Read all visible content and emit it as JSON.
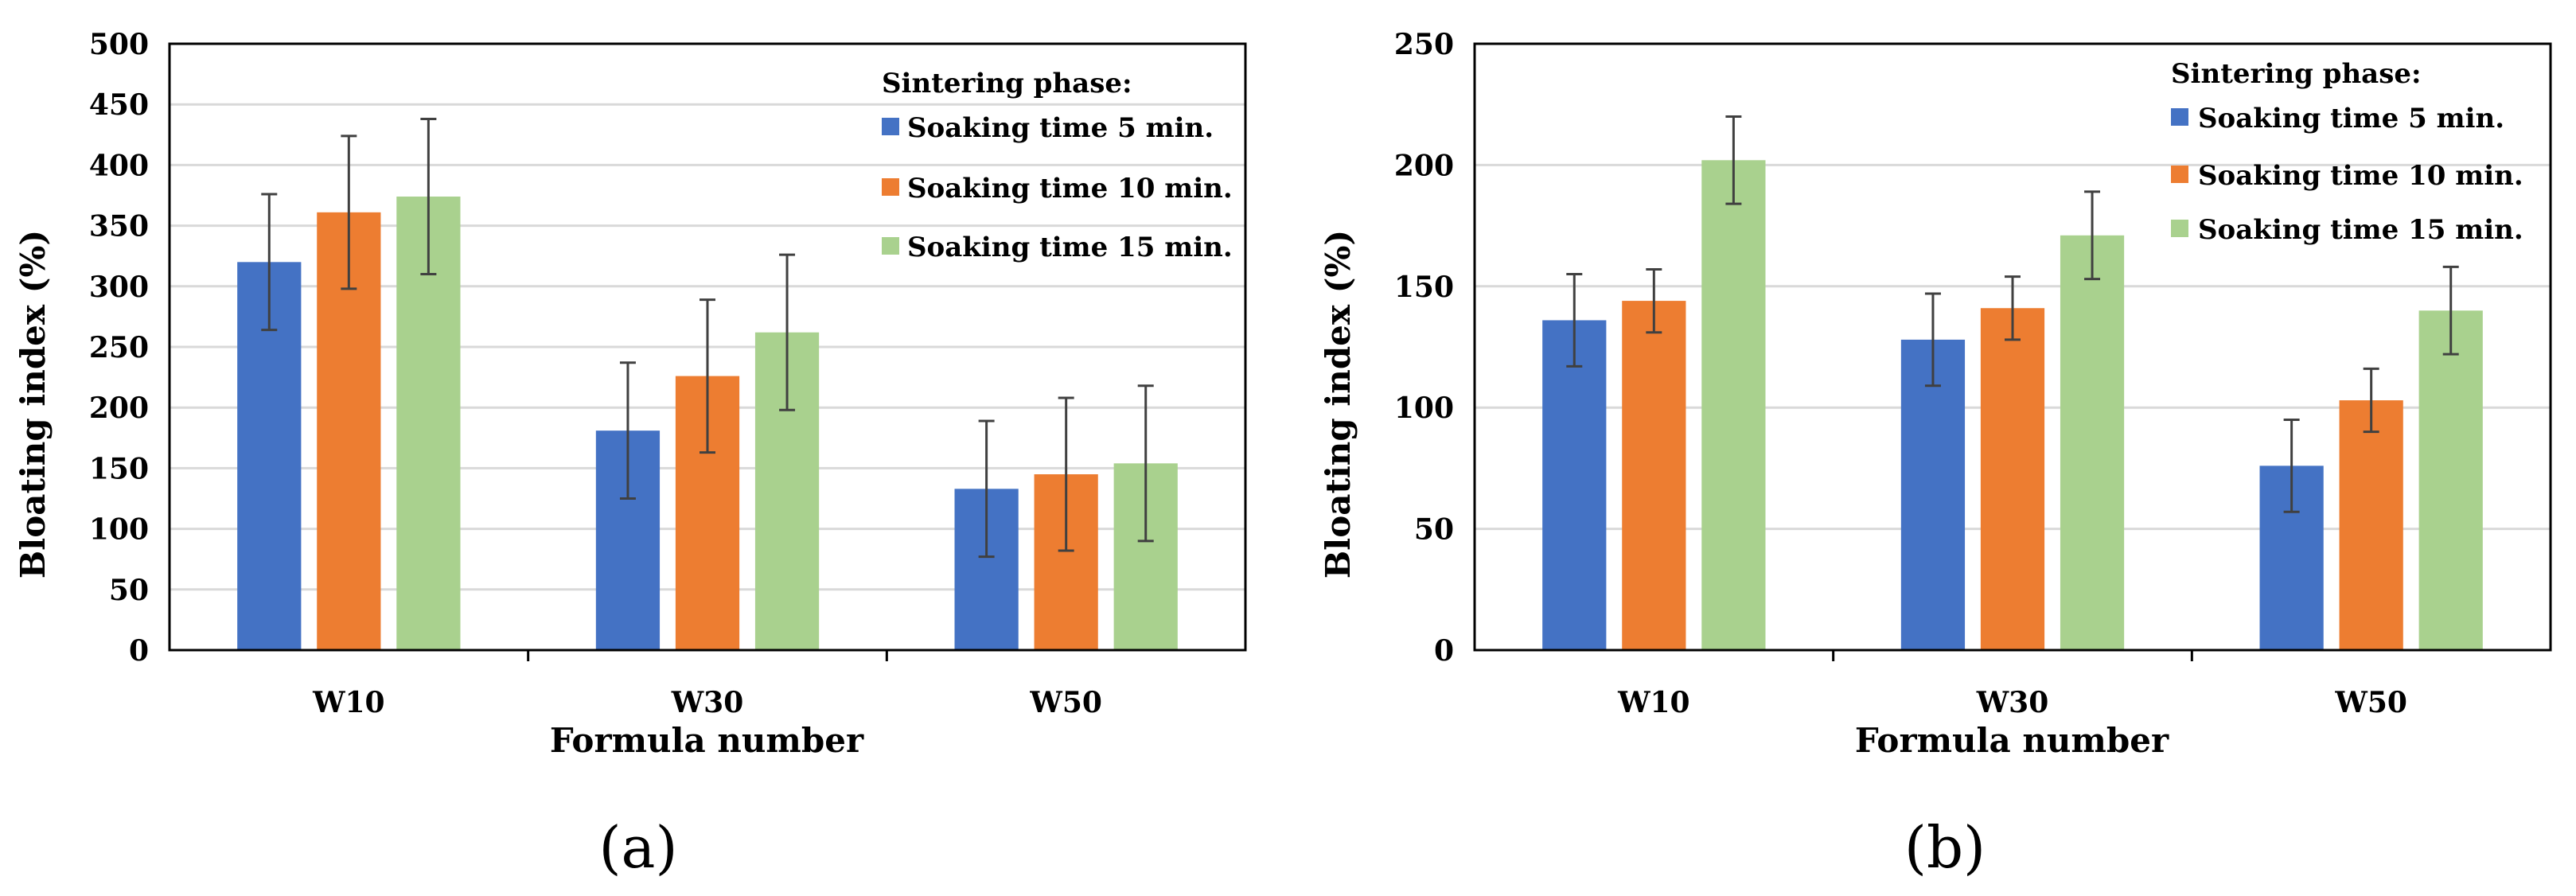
{
  "figure": {
    "panels": [
      {
        "label": "(a)",
        "letter": "a"
      },
      {
        "label": "(b)",
        "letter": "b"
      }
    ]
  },
  "colors": {
    "series": [
      "#4472C4",
      "#ED7D31",
      "#A9D18E"
    ],
    "grid": "#d9d9d9",
    "error_bar": "#404040",
    "axis": "#000000"
  },
  "chart_data": [
    {
      "type": "bar",
      "panel": "(a)",
      "title": "",
      "xlabel": "Formula number",
      "ylabel": "Bloating index (%)",
      "categories": [
        "W10",
        "W30",
        "W50"
      ],
      "ylim": [
        0,
        500
      ],
      "yticks": [
        0,
        50,
        100,
        150,
        200,
        250,
        300,
        350,
        400,
        450,
        500
      ],
      "grid": true,
      "legend": {
        "title": "Sintering phase:",
        "placement": "top-right"
      },
      "series": [
        {
          "name": "Soaking time 5 min.",
          "values": [
            320,
            181,
            133
          ],
          "errors": [
            56,
            56,
            56
          ]
        },
        {
          "name": "Soaking time 10 min.",
          "values": [
            361,
            226,
            145
          ],
          "errors": [
            63,
            63,
            63
          ]
        },
        {
          "name": "Soaking time 15 min.",
          "values": [
            374,
            262,
            154
          ],
          "errors": [
            64,
            64,
            64
          ]
        }
      ]
    },
    {
      "type": "bar",
      "panel": "(b)",
      "title": "",
      "xlabel": "Formula number",
      "ylabel": "Bloating index (%)",
      "categories": [
        "W10",
        "W30",
        "W50"
      ],
      "ylim": [
        0,
        250
      ],
      "yticks": [
        0,
        50,
        100,
        150,
        200,
        250
      ],
      "grid": true,
      "legend": {
        "title": "Sintering phase:",
        "placement": "top-right"
      },
      "series": [
        {
          "name": "Soaking time 5 min.",
          "values": [
            136,
            128,
            76
          ],
          "errors": [
            19,
            19,
            19
          ]
        },
        {
          "name": "Soaking time 10 min.",
          "values": [
            144,
            141,
            103
          ],
          "errors": [
            13,
            13,
            13
          ]
        },
        {
          "name": "Soaking time 15 min.",
          "values": [
            202,
            171,
            140
          ],
          "errors": [
            18,
            18,
            18
          ]
        }
      ]
    }
  ]
}
